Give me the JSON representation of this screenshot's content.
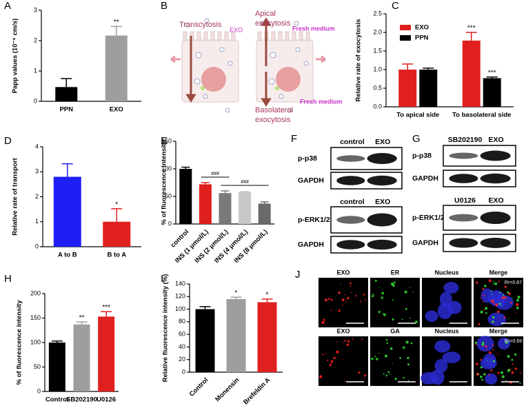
{
  "chart_data": [
    {
      "panel": "A",
      "type": "bar",
      "ylabel": "Papp values (10⁻⁶ cm/s)",
      "categories": [
        "PPN",
        "EXO"
      ],
      "series": [
        {
          "values": [
            0.47,
            2.17
          ],
          "errors": [
            0.28,
            0.3
          ],
          "colors": [
            "#000000",
            "#9e9e9e"
          ],
          "sig": [
            null,
            "**"
          ]
        }
      ],
      "ylim": [
        0,
        3
      ],
      "yticks": [
        0,
        1,
        2,
        3
      ]
    },
    {
      "panel": "C",
      "type": "bar",
      "ylabel": "Relative rate of exocytosis",
      "categories": [
        "To apical side",
        "To basolateral side"
      ],
      "series": [
        {
          "name": "EXO",
          "color": "#e0201e",
          "values": [
            1.0,
            1.78
          ],
          "errors": [
            0.15,
            0.22
          ],
          "sig": [
            null,
            "***"
          ]
        },
        {
          "name": "PPN",
          "color": "#000000",
          "values": [
            1.0,
            0.77
          ],
          "errors": [
            0.04,
            0.03
          ],
          "sig": [
            null,
            "***"
          ]
        }
      ],
      "ylim": [
        0,
        2.5
      ],
      "yticks": [
        {
          "value": 0,
          "label": "0.0"
        },
        0.5,
        {
          "value": 1,
          "label": "1.0"
        },
        1.5,
        {
          "value": 2,
          "label": "2.0"
        },
        2.5
      ],
      "legend": "top-left"
    },
    {
      "panel": "D",
      "type": "bar",
      "ylabel": "Relative rate of transport",
      "categories": [
        "A to B",
        "B to A"
      ],
      "series": [
        {
          "values": [
            2.8,
            1.0
          ],
          "errors": [
            0.52,
            0.52
          ],
          "colors": [
            "#1f1ff5",
            "#e0201e"
          ],
          "sig": [
            null,
            "*"
          ]
        }
      ],
      "ylim": [
        0,
        4
      ],
      "yticks": [
        0,
        1,
        2,
        3,
        4
      ]
    },
    {
      "panel": "E",
      "type": "bar",
      "ylabel": "% of fluorescence intensity",
      "categories": [
        "control",
        "INS (1 μmol/L)",
        "INS (2 μmol/L)",
        "INS (4 μmol/L)",
        "INS (8 μmol/L)"
      ],
      "series": [
        {
          "values": [
            100,
            72,
            56,
            58,
            37
          ],
          "errors": [
            3,
            3,
            4,
            1,
            3
          ],
          "colors": [
            "#000000",
            "#e0201e",
            "#7a7a7a",
            "#c8c8c8",
            "#6a6a6a"
          ]
        }
      ],
      "brackets": [
        {
          "text": "###",
          "from": 1,
          "to": 2
        },
        {
          "text": "###",
          "from": 2,
          "to": 4
        }
      ],
      "ylim": [
        0,
        150
      ],
      "yticks": [
        0,
        50,
        100,
        150
      ],
      "rotate_labels": true
    },
    {
      "panel": "H",
      "type": "bar",
      "ylabel": "% of fluorescence intensity",
      "categories": [
        "Control",
        "SB202190",
        "U0126"
      ],
      "series": [
        {
          "values": [
            100,
            137,
            153
          ],
          "errors": [
            3,
            5,
            10
          ],
          "colors": [
            "#000000",
            "#9e9e9e",
            "#e0201e"
          ],
          "sig": [
            null,
            "**",
            "***"
          ]
        }
      ],
      "ylim": [
        0,
        200
      ],
      "yticks": [
        0,
        50,
        100,
        150,
        200
      ]
    },
    {
      "panel": "I",
      "type": "bar",
      "ylabel": "Relative fluorescence intensity (%)",
      "categories": [
        "Control",
        "Monensin",
        "Brefeldin A"
      ],
      "series": [
        {
          "values": [
            100,
            116,
            111
          ],
          "errors": [
            4,
            3,
            5
          ],
          "colors": [
            "#000000",
            "#9e9e9e",
            "#e0201e"
          ],
          "sig": [
            null,
            "*",
            "*"
          ]
        }
      ],
      "ylim": [
        0,
        140
      ],
      "yticks": [
        0,
        20,
        40,
        60,
        80,
        100,
        120,
        140
      ],
      "rotate_labels": true
    }
  ],
  "panels": {
    "B": {
      "letter": "B",
      "transcytosis": "Transcytosis",
      "exo": "EXO",
      "apical": [
        "Apical",
        "exocytosis"
      ],
      "basolateral": [
        "Basolateral",
        "exocytosis"
      ],
      "fresh_top": "Fresh medium",
      "fresh_bottom": "Fresh medium"
    },
    "F": {
      "letter": "F",
      "blocks": [
        {
          "header": [
            "control",
            "EXO"
          ],
          "rows": [
            "p-p38",
            "GAPDH"
          ]
        },
        {
          "header": [
            "control",
            "EXO"
          ],
          "rows": [
            "p-ERK1/2",
            "GAPDH"
          ]
        }
      ]
    },
    "G": {
      "letter": "G",
      "blocks": [
        {
          "header": [
            "SB202190",
            "EXO"
          ],
          "rows": [
            "p-p38",
            "GAPDH"
          ]
        },
        {
          "header": [
            "U0126",
            "EXO"
          ],
          "rows": [
            "p-ERK1/2",
            "GAPDH"
          ]
        }
      ]
    },
    "J": {
      "letter": "J",
      "rows": [
        {
          "labels": [
            "EXO",
            "ER",
            "Nucleus",
            "Merge"
          ],
          "coefficient": "Rr=0.67"
        },
        {
          "labels": [
            "EXO",
            "GA",
            "Nucleus",
            "Merge"
          ],
          "coefficient": "Rr=0.69"
        }
      ]
    }
  }
}
